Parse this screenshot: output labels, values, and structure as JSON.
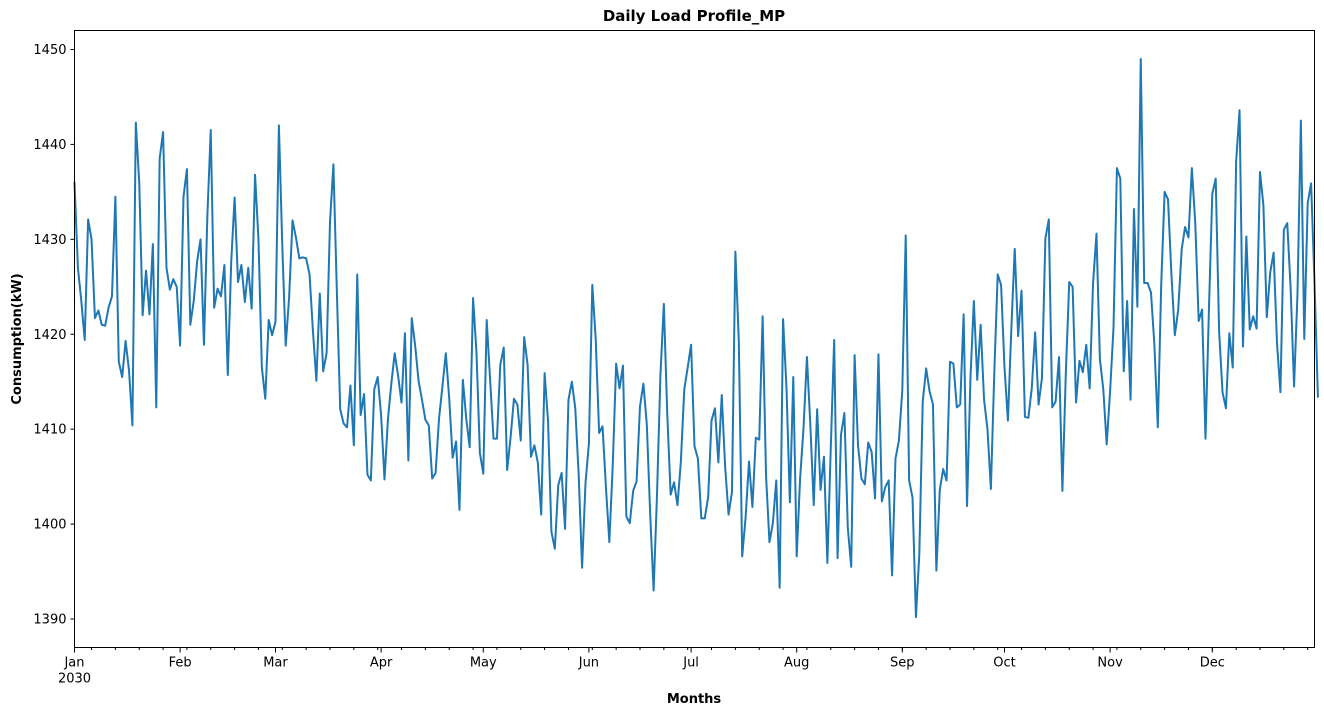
{
  "chart_data": {
    "type": "line",
    "title": "Daily Load Profile_MP",
    "xlabel": "Months",
    "ylabel": "Consumption(kW)",
    "ylim": [
      1387,
      1452
    ],
    "xlim": [
      "2030-01-01",
      "2030-12-31"
    ],
    "grid": false,
    "legend": "none",
    "x_tick_labels": [
      "Jan",
      "Feb",
      "Mar",
      "Apr",
      "May",
      "Jun",
      "Jul",
      "Aug",
      "Sep",
      "Oct",
      "Nov",
      "Dec"
    ],
    "x_tick_dates": [
      "2030-01-01",
      "2030-02-01",
      "2030-03-01",
      "2030-04-01",
      "2030-05-01",
      "2030-06-01",
      "2030-07-01",
      "2030-08-01",
      "2030-09-01",
      "2030-10-01",
      "2030-11-01",
      "2030-12-01"
    ],
    "x_year_label": "2030",
    "y_ticks": [
      1390,
      1400,
      1410,
      1420,
      1430,
      1440,
      1450
    ],
    "series": [
      {
        "color": "#1f77b4",
        "start": "2030-01-01",
        "frequency": "daily",
        "values": [
          1436,
          1427,
          1423.5,
          1419.4,
          1432.1,
          1430,
          1421.7,
          1422.5,
          1421,
          1420.9,
          1422.8,
          1424,
          1434.5,
          1417.1,
          1415.5,
          1419.3,
          1416.2,
          1410.4,
          1442.3,
          1436,
          1422,
          1426.7,
          1422.1,
          1429.5,
          1412.3,
          1438.5,
          1441.3,
          1427,
          1424.7,
          1425.8,
          1425,
          1418.8,
          1434.5,
          1437.4,
          1421,
          1423.5,
          1427.7,
          1430,
          1418.9,
          1432.5,
          1441.5,
          1422.8,
          1424.8,
          1424,
          1427.3,
          1415.7,
          1427.6,
          1434.4,
          1425.5,
          1427.3,
          1423.4,
          1427,
          1422.7,
          1436.8,
          1430,
          1416.5,
          1413.2,
          1421.5,
          1419.9,
          1421.3,
          1442,
          1429.3,
          1418.8,
          1423.9,
          1432,
          1430.2,
          1428,
          1428.1,
          1428,
          1426.3,
          1420.3,
          1415.1,
          1424.3,
          1416.1,
          1418,
          1431.8,
          1437.9,
          1424.7,
          1412.1,
          1410.6,
          1410.2,
          1414.6,
          1408.3,
          1426.3,
          1411.5,
          1413.7,
          1405.2,
          1404.6,
          1414.2,
          1415.5,
          1411.5,
          1404.7,
          1411,
          1414.8,
          1418,
          1415.6,
          1412.8,
          1420.1,
          1406.7,
          1421.7,
          1418.8,
          1415.1,
          1413.1,
          1411,
          1410.4,
          1404.8,
          1405.4,
          1411.1,
          1414.5,
          1418,
          1413.2,
          1407,
          1408.7,
          1401.5,
          1415.2,
          1411.1,
          1408.1,
          1423.8,
          1418.1,
          1407.5,
          1405.3,
          1421.5,
          1415.2,
          1409,
          1409,
          1416.8,
          1418.6,
          1405.7,
          1409.1,
          1413.2,
          1412.6,
          1408.8,
          1419.7,
          1416.8,
          1407.1,
          1408.3,
          1406.5,
          1401,
          1415.9,
          1410.9,
          1399.2,
          1397.4,
          1404.1,
          1405.4,
          1399.5,
          1413.1,
          1415,
          1412.2,
          1405.2,
          1395.4,
          1404.3,
          1408.5,
          1425.2,
          1419.5,
          1409.6,
          1410.3,
          1403.9,
          1398.1,
          1406.2,
          1416.9,
          1414.3,
          1416.7,
          1400.8,
          1400.1,
          1403.5,
          1404.5,
          1412.4,
          1414.8,
          1410.5,
          1401,
          1393,
          1403.2,
          1415.7,
          1423.2,
          1411.6,
          1403.1,
          1404.4,
          1402,
          1406.6,
          1414.2,
          1416.5,
          1418.9,
          1408.2,
          1406.9,
          1400.6,
          1400.6,
          1402.8,
          1410.9,
          1412.2,
          1406.5,
          1413.6,
          1406,
          1401,
          1403.4,
          1428.7,
          1419.3,
          1396.6,
          1400.7,
          1406.6,
          1401.8,
          1409.1,
          1408.9,
          1421.9,
          1405.1,
          1398.1,
          1400.1,
          1404.6,
          1393.3,
          1421.6,
          1414.4,
          1402.3,
          1415.5,
          1396.6,
          1404.8,
          1410.1,
          1417.6,
          1410.5,
          1402,
          1412.1,
          1403.6,
          1407.1,
          1395.9,
          1408,
          1419.4,
          1396.4,
          1409.4,
          1411.7,
          1399.6,
          1395.5,
          1417.8,
          1408.3,
          1404.8,
          1404.2,
          1408.6,
          1407.6,
          1402.7,
          1417.9,
          1402.4,
          1403.9,
          1404.6,
          1394.6,
          1406.9,
          1408.8,
          1414.1,
          1430.4,
          1404.6,
          1402.8,
          1390.2,
          1396.9,
          1412.9,
          1416.4,
          1414,
          1412.6,
          1395.1,
          1403.6,
          1405.8,
          1404.6,
          1417.1,
          1416.9,
          1412.3,
          1412.6,
          1422.1,
          1401.9,
          1415.3,
          1423.5,
          1415.2,
          1421,
          1413.1,
          1410,
          1403.7,
          1415.9,
          1426.3,
          1425.2,
          1416.5,
          1410.9,
          1420.5,
          1429,
          1419.8,
          1424.6,
          1411.3,
          1411.2,
          1414.3,
          1420.2,
          1412.6,
          1415.4,
          1430.1,
          1432.1,
          1412.3,
          1412.9,
          1417.6,
          1403.5,
          1415.9,
          1425.5,
          1425,
          1412.8,
          1417.2,
          1416,
          1418.9,
          1414.3,
          1425.4,
          1430.6,
          1417.4,
          1414.2,
          1408.4,
          1414,
          1420.7,
          1437.5,
          1436.4,
          1416.1,
          1423.5,
          1413.1,
          1433.2,
          1422.9,
          1449,
          1425.4,
          1425.4,
          1424.4,
          1418.9,
          1410.2,
          1425.2,
          1435,
          1434.2,
          1426.3,
          1419.9,
          1422.6,
          1428.9,
          1431.3,
          1430.2,
          1437.5,
          1431.7,
          1421.4,
          1422.6,
          1409,
          1422.5,
          1434.8,
          1436.4,
          1420.3,
          1413.9,
          1412.2,
          1420.1,
          1416.5,
          1438.2,
          1443.6,
          1418.7,
          1430.3,
          1420.5,
          1421.9,
          1420.6,
          1437.1,
          1433.6,
          1421.8,
          1426.5,
          1428.6,
          1419,
          1413.9,
          1431,
          1431.7,
          1424.8,
          1414.5,
          1424.2,
          1442.5,
          1419.5,
          1433.8,
          1435.9,
          1425.5,
          1413.4
        ]
      }
    ]
  }
}
